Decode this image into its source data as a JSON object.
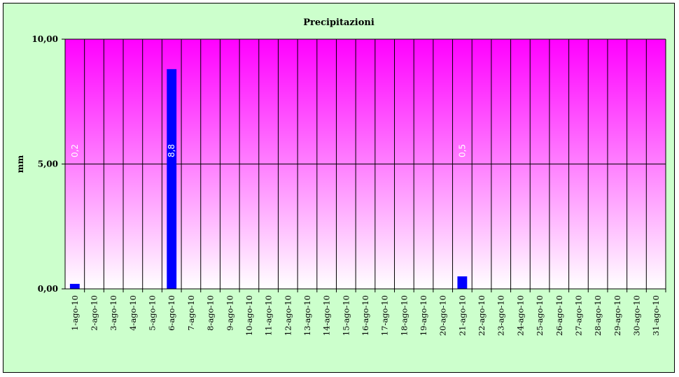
{
  "chart_data": {
    "type": "bar",
    "title": "Precipitazioni",
    "ylabel": "mm",
    "xlabel": "",
    "ylim": [
      0,
      10
    ],
    "yticks": [
      "0,00",
      "5,00",
      "10,00"
    ],
    "grid": true,
    "legend": "none",
    "categories": [
      "1-ago-10",
      "2-ago-10",
      "3-ago-10",
      "4-ago-10",
      "5-ago-10",
      "6-ago-10",
      "7-ago-10",
      "8-ago-10",
      "9-ago-10",
      "10-ago-10",
      "11-ago-10",
      "12-ago-10",
      "13-ago-10",
      "14-ago-10",
      "15-ago-10",
      "16-ago-10",
      "17-ago-10",
      "18-ago-10",
      "19-ago-10",
      "20-ago-10",
      "21-ago-10",
      "22-ago-10",
      "23-ago-10",
      "24-ago-10",
      "25-ago-10",
      "26-ago-10",
      "27-ago-10",
      "28-ago-10",
      "29-ago-10",
      "30-ago-10",
      "31-ago-10"
    ],
    "values": [
      0.2,
      0,
      0,
      0,
      0,
      8.8,
      0,
      0,
      0,
      0,
      0,
      0,
      0,
      0,
      0,
      0,
      0,
      0,
      0,
      0,
      0.5,
      0,
      0,
      0,
      0,
      0,
      0,
      0,
      0,
      0,
      0
    ],
    "data_labels": [
      "0,2",
      "",
      "",
      "",
      "",
      "8,8",
      "",
      "",
      "",
      "",
      "",
      "",
      "",
      "",
      "",
      "",
      "",
      "",
      "",
      "",
      "0,5",
      "",
      "",
      "",
      "",
      "",
      "",
      "",
      "",
      "",
      ""
    ],
    "colors": {
      "background": "#ccffcc",
      "plot_top": "#ff00ff",
      "plot_bottom": "#ffffff",
      "bar": "#0000ff",
      "grid": "#000000"
    }
  }
}
